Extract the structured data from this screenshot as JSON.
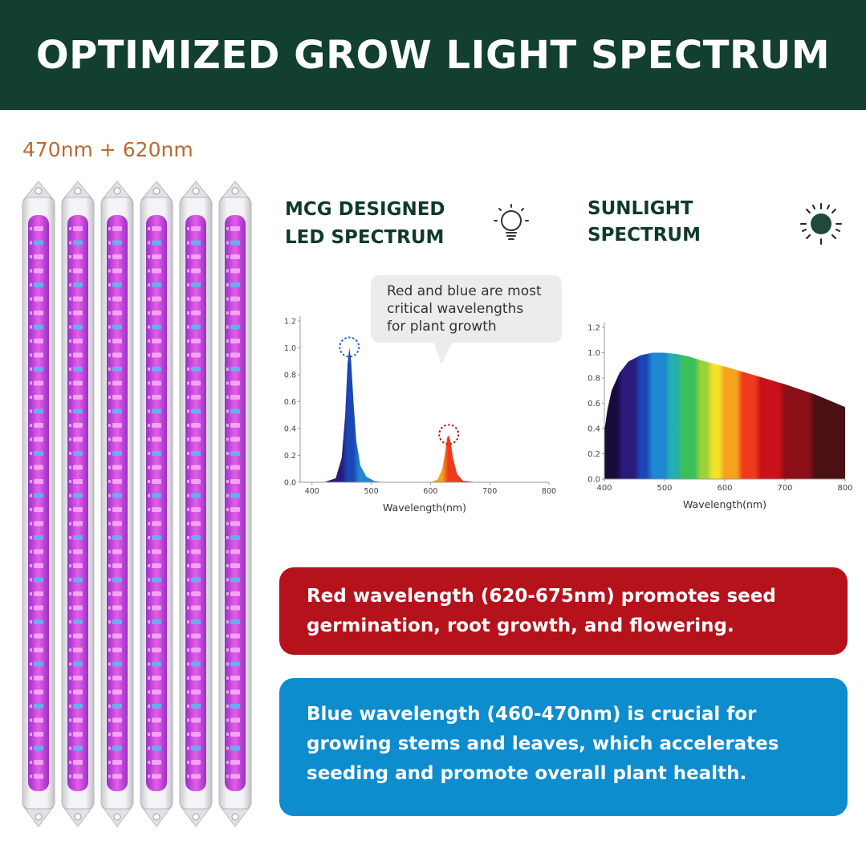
{
  "header": {
    "title": "OPTIMIZED GROW LIGHT SPECTRUM"
  },
  "product": {
    "spectrum_label": "470nm + 620nm",
    "bar_count": 6
  },
  "panels": {
    "led": {
      "title_line1": "MCG DESIGNED",
      "title_line2": "LED SPECTRUM",
      "icon": "light-bulb-icon"
    },
    "sun": {
      "title_line1": "SUNLIGHT",
      "title_line2": "SPECTRUM",
      "icon": "sun-icon"
    }
  },
  "callout": {
    "line1": "Red and blue are most",
    "line2": "critical wavelengths",
    "line3": "for plant growth"
  },
  "info": {
    "red_line1": "Red wavelength (620-675nm) promotes seed",
    "red_line2": "germination, root growth, and flowering.",
    "blue_line1": "Blue wavelength (460-470nm) is crucial for",
    "blue_line2": "growing stems and leaves, which accelerates",
    "blue_line3": "seeding and promote overall plant health."
  },
  "colors": {
    "header_bg": "#123f2f",
    "title_green": "#0f3a2b",
    "label_orange": "#b86a32",
    "red_box": "#b5121c",
    "blue_box": "#0d8cce",
    "pink_led": "#d63fd6",
    "blue_led": "#5fb4f0"
  },
  "chart_data": [
    {
      "type": "area",
      "xlabel": "Wavelength(nm)",
      "xlim": [
        380,
        800
      ],
      "ylim": [
        0,
        1.2
      ],
      "xticks": [
        400,
        500,
        600,
        700,
        800
      ],
      "yticks": [
        "0.0",
        "0.2",
        "0.4",
        "0.6",
        "0.8",
        "1.0",
        "1.2"
      ],
      "x": [
        380,
        420,
        440,
        450,
        456,
        460,
        463,
        466,
        470,
        475,
        482,
        492,
        505,
        520,
        560,
        600,
        612,
        620,
        625,
        628,
        631,
        634,
        638,
        645,
        655,
        680,
        800
      ],
      "values": [
        0,
        0,
        0.03,
        0.18,
        0.5,
        0.88,
        1.0,
        0.9,
        0.6,
        0.3,
        0.12,
        0.04,
        0.01,
        0,
        0,
        0,
        0.02,
        0.1,
        0.23,
        0.33,
        0.35,
        0.3,
        0.18,
        0.06,
        0.01,
        0,
        0
      ],
      "highlights": [
        {
          "x": 463,
          "y": 1.0
        },
        {
          "x": 631,
          "y": 0.35
        }
      ]
    },
    {
      "type": "area",
      "xlabel": "Wavelength(nm)",
      "xlim": [
        400,
        800
      ],
      "ylim": [
        0,
        1.2
      ],
      "xticks": [
        400,
        500,
        600,
        700,
        800
      ],
      "yticks": [
        "0.0",
        "0.2",
        "0.4",
        "0.6",
        "0.8",
        "1.0",
        "1.2"
      ],
      "x": [
        400,
        405,
        412,
        425,
        440,
        460,
        480,
        500,
        520,
        540,
        560,
        600,
        650,
        700,
        750,
        800
      ],
      "values": [
        0.38,
        0.55,
        0.7,
        0.84,
        0.93,
        0.98,
        1.0,
        1.0,
        0.99,
        0.97,
        0.94,
        0.89,
        0.82,
        0.75,
        0.67,
        0.57
      ]
    }
  ]
}
